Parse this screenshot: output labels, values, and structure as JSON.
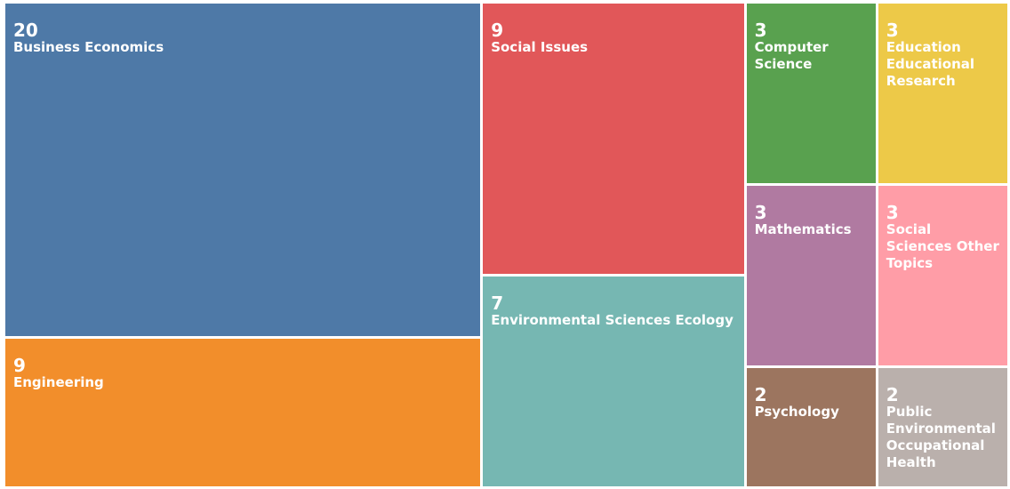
{
  "chart_data": {
    "type": "treemap",
    "categories": [
      "Business Economics",
      "Engineering",
      "Social Issues",
      "Environmental Sciences Ecology",
      "Computer Science",
      "Education Educational Research",
      "Mathematics",
      "Social Sciences Other Topics",
      "Psychology",
      "Public Environmental Occupational Health"
    ],
    "values": [
      20,
      9,
      9,
      7,
      3,
      3,
      3,
      3,
      2,
      2
    ],
    "colors": [
      "#4e79a7",
      "#f28e2b",
      "#e15759",
      "#76b7b2",
      "#59a14f",
      "#edc948",
      "#b07aa1",
      "#ff9da7",
      "#9c755f",
      "#bab0ac"
    ]
  }
}
